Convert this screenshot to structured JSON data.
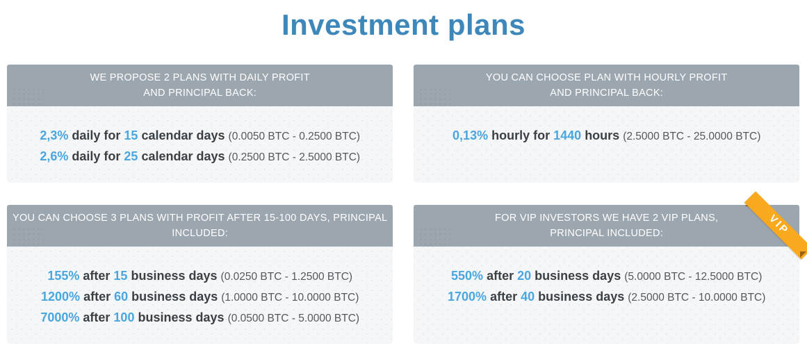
{
  "page": {
    "title": "Investment plans"
  },
  "colors": {
    "title_blue": "#3d87ba",
    "accent_blue": "#4aa6de",
    "header_gray": "#9ca6af",
    "body_gray": "#f5f6f8",
    "text_dark": "#3b4045",
    "range_gray": "#54585d",
    "ribbon_orange": "#f9a91e"
  },
  "cards": [
    {
      "name": "daily-profit-plans",
      "header_lines": [
        "WE PROPOSE 2 PLANS WITH DAILY PROFIT",
        "AND PRINCIPAL BACK:"
      ],
      "plans": [
        {
          "rate": "2,3%",
          "pre": "daily for",
          "amount": "15",
          "post": "calendar days",
          "range": "(0.0050 BTC - 0.2500 BTC)"
        },
        {
          "rate": "2,6%",
          "pre": "daily for",
          "amount": "25",
          "post": "calendar days",
          "range": "(0.2500 BTC - 2.5000 BTC)"
        }
      ]
    },
    {
      "name": "hourly-profit-plan",
      "header_lines": [
        "YOU CAN CHOOSE PLAN WITH HOURLY PROFIT",
        "AND PRINCIPAL BACK:"
      ],
      "plans": [
        {
          "rate": "0,13%",
          "pre": "hourly for",
          "amount": "1440",
          "post": "hours",
          "range": "(2.5000 BTC - 25.0000 BTC)"
        }
      ]
    },
    {
      "name": "profit-after-days-plans",
      "header_lines": [
        "YOU CAN CHOOSE 3 PLANS WITH PROFIT AFTER 15-100 DAYS, PRINCIPAL",
        "INCLUDED:"
      ],
      "plans": [
        {
          "rate": "155%",
          "pre": "after",
          "amount": "15",
          "post": "business days",
          "range": "(0.0250 BTC - 1.2500 BTC)"
        },
        {
          "rate": "1200%",
          "pre": "after",
          "amount": "60",
          "post": "business days",
          "range": "(1.0000 BTC - 10.0000 BTC)"
        },
        {
          "rate": "7000%",
          "pre": "after",
          "amount": "100",
          "post": "business days",
          "range": "(0.0500 BTC - 5.0000 BTC)"
        }
      ]
    },
    {
      "name": "vip-plans",
      "ribbon_label": "VIP",
      "header_lines": [
        "FOR VIP INVESTORS WE HAVE 2 VIP PLANS,",
        "PRINCIPAL INCLUDED:"
      ],
      "plans": [
        {
          "rate": "550%",
          "pre": "after",
          "amount": "20",
          "post": "business days",
          "range": "(5.0000 BTC - 12.5000 BTC)"
        },
        {
          "rate": "1700%",
          "pre": "after",
          "amount": "40",
          "post": "business days",
          "range": "(2.5000 BTC - 10.0000 BTC)"
        }
      ]
    }
  ]
}
